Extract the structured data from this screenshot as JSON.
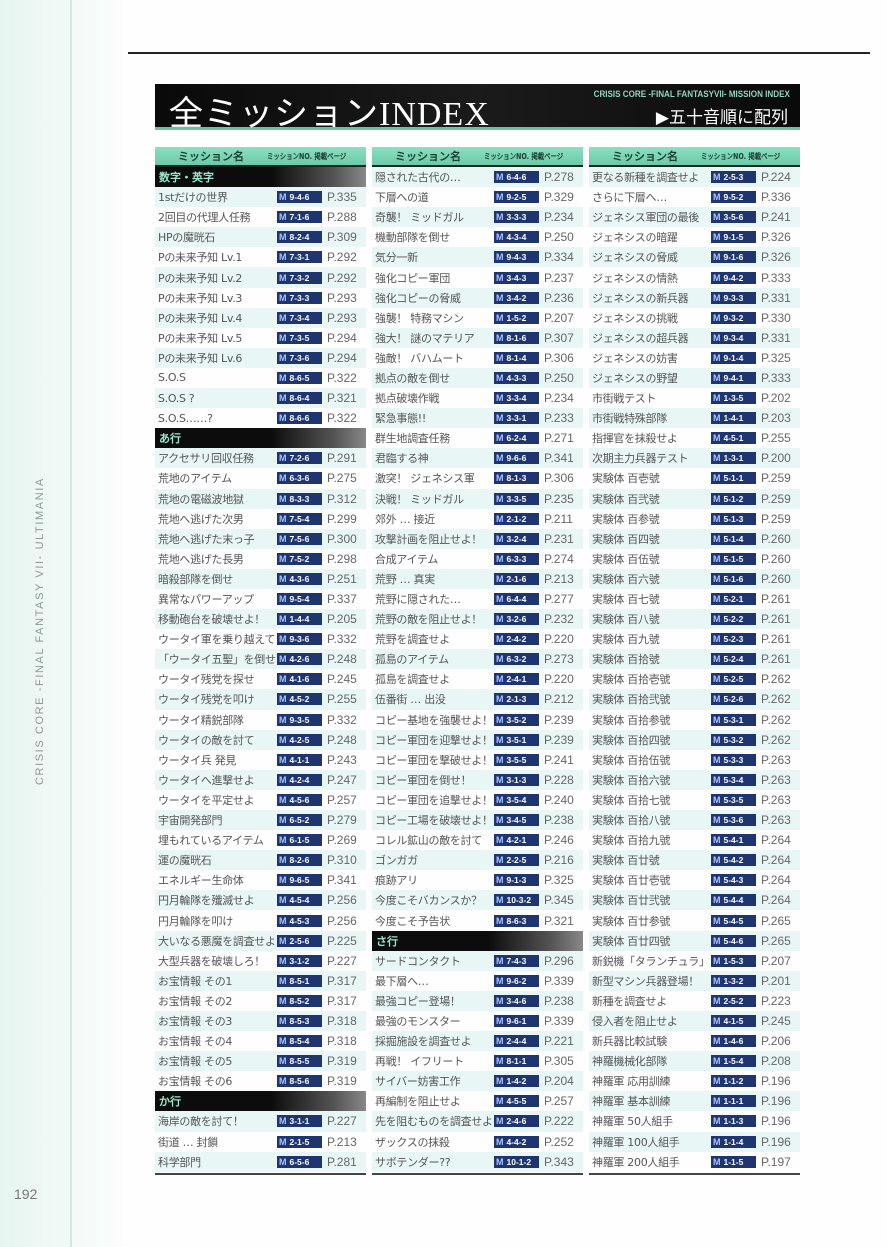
{
  "side_text": "CRISIS CORE -FINAL FANTASY VII- ULTIMANIA",
  "page_number": "192",
  "header": {
    "title": "全ミッションINDEX",
    "subtitle": "CRISIS CORE -FINAL FANTASYVII- MISSION INDEX",
    "sort_label": "▶五十音順に配列"
  },
  "column_headers": {
    "name": "ミッション名",
    "no_page": "ミッションNO. 掲載ページ"
  },
  "badge_letter": "M",
  "colors": {
    "accent": "#6fbfa5",
    "badge": "#1f3570",
    "band": "#0a0a0a"
  },
  "columns": [
    {
      "rows": [
        {
          "section": "数字・英字"
        },
        {
          "name": "1stだけの世界",
          "no": "9-4-6",
          "page": "P.335"
        },
        {
          "name": "2回目の代理人任務",
          "no": "7-1-6",
          "page": "P.288"
        },
        {
          "name": "HPの魔晄石",
          "no": "8-2-4",
          "page": "P.309"
        },
        {
          "name": "Pの未来予知 Lv.1",
          "no": "7-3-1",
          "page": "P.292"
        },
        {
          "name": "Pの未来予知 Lv.2",
          "no": "7-3-2",
          "page": "P.292"
        },
        {
          "name": "Pの未来予知 Lv.3",
          "no": "7-3-3",
          "page": "P.293"
        },
        {
          "name": "Pの未来予知 Lv.4",
          "no": "7-3-4",
          "page": "P.293"
        },
        {
          "name": "Pの未来予知 Lv.5",
          "no": "7-3-5",
          "page": "P.294"
        },
        {
          "name": "Pの未来予知 Lv.6",
          "no": "7-3-6",
          "page": "P.294"
        },
        {
          "name": "S.O.S",
          "no": "8-6-5",
          "page": "P.322"
        },
        {
          "name": "S.O.S ?",
          "no": "8-6-4",
          "page": "P.321"
        },
        {
          "name": "S.O.S……?",
          "no": "8-6-6",
          "page": "P.322"
        },
        {
          "section": "あ行"
        },
        {
          "name": "アクセサリ回収任務",
          "no": "7-2-6",
          "page": "P.291"
        },
        {
          "name": "荒地のアイテム",
          "no": "6-3-6",
          "page": "P.275"
        },
        {
          "name": "荒地の電磁波地獄",
          "no": "8-3-3",
          "page": "P.312"
        },
        {
          "name": "荒地へ逃げた次男",
          "no": "7-5-4",
          "page": "P.299"
        },
        {
          "name": "荒地へ逃げた末っ子",
          "no": "7-5-6",
          "page": "P.300"
        },
        {
          "name": "荒地へ逃げた長男",
          "no": "7-5-2",
          "page": "P.298"
        },
        {
          "name": "暗殺部隊を倒せ",
          "no": "4-3-6",
          "page": "P.251"
        },
        {
          "name": "異常なパワーアップ",
          "no": "9-5-4",
          "page": "P.337"
        },
        {
          "name": "移動砲台を破壊せよ！",
          "no": "1-4-4",
          "page": "P.205"
        },
        {
          "name": "ウータイ軍を乗り越えて",
          "no": "9-3-6",
          "page": "P.332"
        },
        {
          "name": "「ウータイ五聖」を倒せ",
          "no": "4-2-6",
          "page": "P.248"
        },
        {
          "name": "ウータイ残党を探せ",
          "no": "4-1-6",
          "page": "P.245"
        },
        {
          "name": "ウータイ残党を叩け",
          "no": "4-5-2",
          "page": "P.255"
        },
        {
          "name": "ウータイ精鋭部隊",
          "no": "9-3-5",
          "page": "P.332"
        },
        {
          "name": "ウータイの敵を討て",
          "no": "4-2-5",
          "page": "P.248"
        },
        {
          "name": "ウータイ兵 発見",
          "no": "4-1-1",
          "page": "P.243"
        },
        {
          "name": "ウータイへ進撃せよ",
          "no": "4-2-4",
          "page": "P.247"
        },
        {
          "name": "ウータイを平定せよ",
          "no": "4-5-6",
          "page": "P.257"
        },
        {
          "name": "宇宙開発部門",
          "no": "6-5-2",
          "page": "P.279"
        },
        {
          "name": "埋もれているアイテム",
          "no": "6-1-5",
          "page": "P.269"
        },
        {
          "name": "運の魔晄石",
          "no": "8-2-6",
          "page": "P.310"
        },
        {
          "name": "エネルギー生命体",
          "no": "9-6-5",
          "page": "P.341"
        },
        {
          "name": "円月輪隊を殲滅せよ",
          "no": "4-5-4",
          "page": "P.256"
        },
        {
          "name": "円月輪隊を叩け",
          "no": "4-5-3",
          "page": "P.256"
        },
        {
          "name": "大いなる悪魔を調査せよ",
          "no": "2-5-6",
          "page": "P.225"
        },
        {
          "name": "大型兵器を破壊しろ！",
          "no": "3-1-2",
          "page": "P.227"
        },
        {
          "name": "お宝情報 その1",
          "no": "8-5-1",
          "page": "P.317"
        },
        {
          "name": "お宝情報 その2",
          "no": "8-5-2",
          "page": "P.317"
        },
        {
          "name": "お宝情報 その3",
          "no": "8-5-3",
          "page": "P.318"
        },
        {
          "name": "お宝情報 その4",
          "no": "8-5-4",
          "page": "P.318"
        },
        {
          "name": "お宝情報 その5",
          "no": "8-5-5",
          "page": "P.319"
        },
        {
          "name": "お宝情報 その6",
          "no": "8-5-6",
          "page": "P.319"
        },
        {
          "section": "か行"
        },
        {
          "name": "海岸の敵を討て！",
          "no": "3-1-1",
          "page": "P.227"
        },
        {
          "name": "街道 … 封鎖",
          "no": "2-1-5",
          "page": "P.213"
        },
        {
          "name": "科学部門",
          "no": "6-5-6",
          "page": "P.281"
        }
      ]
    },
    {
      "rows": [
        {
          "name": "隠された古代の…",
          "no": "6-4-6",
          "page": "P.278"
        },
        {
          "name": "下層への道",
          "no": "9-2-5",
          "page": "P.329"
        },
        {
          "name": "奇襲！ ミッドガル",
          "no": "3-3-3",
          "page": "P.234"
        },
        {
          "name": "機動部隊を倒せ",
          "no": "4-3-4",
          "page": "P.250"
        },
        {
          "name": "気分一新",
          "no": "9-4-3",
          "page": "P.334"
        },
        {
          "name": "強化コピー軍団",
          "no": "3-4-3",
          "page": "P.237"
        },
        {
          "name": "強化コピーの脅威",
          "no": "3-4-2",
          "page": "P.236"
        },
        {
          "name": "強襲！ 特務マシン",
          "no": "1-5-2",
          "page": "P.207"
        },
        {
          "name": "強大！ 謎のマテリア",
          "no": "8-1-6",
          "page": "P.307"
        },
        {
          "name": "強敵！ バハムート",
          "no": "8-1-4",
          "page": "P.306"
        },
        {
          "name": "拠点の敵を倒せ",
          "no": "4-3-3",
          "page": "P.250"
        },
        {
          "name": "拠点破壊作戦",
          "no": "3-3-4",
          "page": "P.234"
        },
        {
          "name": "緊急事態!!",
          "no": "3-3-1",
          "page": "P.233"
        },
        {
          "name": "群生地調査任務",
          "no": "6-2-4",
          "page": "P.271"
        },
        {
          "name": "君臨する神",
          "no": "9-6-6",
          "page": "P.341"
        },
        {
          "name": "激突！ ジェネシス軍",
          "no": "8-1-3",
          "page": "P.306"
        },
        {
          "name": "決戦！ ミッドガル",
          "no": "3-3-5",
          "page": "P.235"
        },
        {
          "name": "郊外 … 接近",
          "no": "2-1-2",
          "page": "P.211"
        },
        {
          "name": "攻撃計画を阻止せよ！",
          "no": "3-2-4",
          "page": "P.231"
        },
        {
          "name": "合成アイテム",
          "no": "6-3-3",
          "page": "P.274"
        },
        {
          "name": "荒野 … 真実",
          "no": "2-1-6",
          "page": "P.213"
        },
        {
          "name": "荒野に隠された…",
          "no": "6-4-4",
          "page": "P.277"
        },
        {
          "name": "荒野の敵を阻止せよ！",
          "no": "3-2-6",
          "page": "P.232"
        },
        {
          "name": "荒野を調査せよ",
          "no": "2-4-2",
          "page": "P.220"
        },
        {
          "name": "孤島のアイテム",
          "no": "6-3-2",
          "page": "P.273"
        },
        {
          "name": "孤島を調査せよ",
          "no": "2-4-1",
          "page": "P.220"
        },
        {
          "name": "伍番街 … 出没",
          "no": "2-1-3",
          "page": "P.212"
        },
        {
          "name": "コピー基地を強襲せよ！",
          "no": "3-5-2",
          "page": "P.239"
        },
        {
          "name": "コピー軍団を迎撃せよ！",
          "no": "3-5-1",
          "page": "P.239"
        },
        {
          "name": "コピー軍団を撃破せよ！",
          "no": "3-5-5",
          "page": "P.241"
        },
        {
          "name": "コピー軍団を倒せ！",
          "no": "3-1-3",
          "page": "P.228"
        },
        {
          "name": "コピー軍団を追撃せよ！",
          "no": "3-5-4",
          "page": "P.240"
        },
        {
          "name": "コピー工場を破壊せよ！",
          "no": "3-4-5",
          "page": "P.238"
        },
        {
          "name": "コレル鉱山の敵を討て",
          "no": "4-2-1",
          "page": "P.246"
        },
        {
          "name": "ゴンガガ",
          "no": "2-2-5",
          "page": "P.216"
        },
        {
          "name": "痕跡アリ",
          "no": "9-1-3",
          "page": "P.325"
        },
        {
          "name": "今度こそバカンスか？",
          "no": "10-3-2",
          "page": "P.345"
        },
        {
          "name": "今度こそ予告状",
          "no": "8-6-3",
          "page": "P.321"
        },
        {
          "section": "さ行"
        },
        {
          "name": "サードコンタクト",
          "no": "7-4-3",
          "page": "P.296"
        },
        {
          "name": "最下層へ…",
          "no": "9-6-2",
          "page": "P.339"
        },
        {
          "name": "最強コピー登場！",
          "no": "3-4-6",
          "page": "P.238"
        },
        {
          "name": "最強のモンスター",
          "no": "9-6-1",
          "page": "P.339"
        },
        {
          "name": "採掘施設を調査せよ",
          "no": "2-4-4",
          "page": "P.221"
        },
        {
          "name": "再戦！ イフリート",
          "no": "8-1-1",
          "page": "P.305"
        },
        {
          "name": "サイバー妨害工作",
          "no": "1-4-2",
          "page": "P.204"
        },
        {
          "name": "再編制を阻止せよ",
          "no": "4-5-5",
          "page": "P.257"
        },
        {
          "name": "先を阻むものを調査せよ",
          "no": "2-4-6",
          "page": "P.222"
        },
        {
          "name": "ザックスの抹殺",
          "no": "4-4-2",
          "page": "P.252"
        },
        {
          "name": "サボテンダー??",
          "no": "10-1-2",
          "page": "P.343"
        }
      ]
    },
    {
      "rows": [
        {
          "name": "更なる新種を調査せよ",
          "no": "2-5-3",
          "page": "P.224"
        },
        {
          "name": "さらに下層へ…",
          "no": "9-5-2",
          "page": "P.336"
        },
        {
          "name": "ジェネシス軍団の最後",
          "no": "3-5-6",
          "page": "P.241"
        },
        {
          "name": "ジェネシスの暗躍",
          "no": "9-1-5",
          "page": "P.326"
        },
        {
          "name": "ジェネシスの脅威",
          "no": "9-1-6",
          "page": "P.326"
        },
        {
          "name": "ジェネシスの情熱",
          "no": "9-4-2",
          "page": "P.333"
        },
        {
          "name": "ジェネシスの新兵器",
          "no": "9-3-3",
          "page": "P.331"
        },
        {
          "name": "ジェネシスの挑戦",
          "no": "9-3-2",
          "page": "P.330"
        },
        {
          "name": "ジェネシスの超兵器",
          "no": "9-3-4",
          "page": "P.331"
        },
        {
          "name": "ジェネシスの妨害",
          "no": "9-1-4",
          "page": "P.325"
        },
        {
          "name": "ジェネシスの野望",
          "no": "9-4-1",
          "page": "P.333"
        },
        {
          "name": "市街戦テスト",
          "no": "1-3-5",
          "page": "P.202"
        },
        {
          "name": "市街戦特殊部隊",
          "no": "1-4-1",
          "page": "P.203"
        },
        {
          "name": "指揮官を抹殺せよ",
          "no": "4-5-1",
          "page": "P.255"
        },
        {
          "name": "次期主力兵器テスト",
          "no": "1-3-1",
          "page": "P.200"
        },
        {
          "name": "実験体 百壱號",
          "no": "5-1-1",
          "page": "P.259"
        },
        {
          "name": "実験体 百弐號",
          "no": "5-1-2",
          "page": "P.259"
        },
        {
          "name": "実験体 百参號",
          "no": "5-1-3",
          "page": "P.259"
        },
        {
          "name": "実験体 百四號",
          "no": "5-1-4",
          "page": "P.260"
        },
        {
          "name": "実験体 百伍號",
          "no": "5-1-5",
          "page": "P.260"
        },
        {
          "name": "実験体 百六號",
          "no": "5-1-6",
          "page": "P.260"
        },
        {
          "name": "実験体 百七號",
          "no": "5-2-1",
          "page": "P.261"
        },
        {
          "name": "実験体 百八號",
          "no": "5-2-2",
          "page": "P.261"
        },
        {
          "name": "実験体 百九號",
          "no": "5-2-3",
          "page": "P.261"
        },
        {
          "name": "実験体 百拾號",
          "no": "5-2-4",
          "page": "P.261"
        },
        {
          "name": "実験体 百拾壱號",
          "no": "5-2-5",
          "page": "P.262"
        },
        {
          "name": "実験体 百拾弐號",
          "no": "5-2-6",
          "page": "P.262"
        },
        {
          "name": "実験体 百拾参號",
          "no": "5-3-1",
          "page": "P.262"
        },
        {
          "name": "実験体 百拾四號",
          "no": "5-3-2",
          "page": "P.262"
        },
        {
          "name": "実験体 百拾伍號",
          "no": "5-3-3",
          "page": "P.263"
        },
        {
          "name": "実験体 百拾六號",
          "no": "5-3-4",
          "page": "P.263"
        },
        {
          "name": "実験体 百拾七號",
          "no": "5-3-5",
          "page": "P.263"
        },
        {
          "name": "実験体 百拾八號",
          "no": "5-3-6",
          "page": "P.263"
        },
        {
          "name": "実験体 百拾九號",
          "no": "5-4-1",
          "page": "P.264"
        },
        {
          "name": "実験体 百廿號",
          "no": "5-4-2",
          "page": "P.264"
        },
        {
          "name": "実験体 百廿壱號",
          "no": "5-4-3",
          "page": "P.264"
        },
        {
          "name": "実験体 百廿弐號",
          "no": "5-4-4",
          "page": "P.264"
        },
        {
          "name": "実験体 百廿参號",
          "no": "5-4-5",
          "page": "P.265"
        },
        {
          "name": "実験体 百廿四號",
          "no": "5-4-6",
          "page": "P.265"
        },
        {
          "name": "新鋭機「タランチュラ」",
          "no": "1-5-3",
          "page": "P.207"
        },
        {
          "name": "新型マシン兵器登場！",
          "no": "1-3-2",
          "page": "P.201"
        },
        {
          "name": "新種を調査せよ",
          "no": "2-5-2",
          "page": "P.223"
        },
        {
          "name": "侵入者を阻止せよ",
          "no": "4-1-5",
          "page": "P.245"
        },
        {
          "name": "新兵器比較試験",
          "no": "1-4-6",
          "page": "P.206"
        },
        {
          "name": "神羅機械化部隊",
          "no": "1-5-4",
          "page": "P.208"
        },
        {
          "name": "神羅軍 応用訓練",
          "no": "1-1-2",
          "page": "P.196"
        },
        {
          "name": "神羅軍 基本訓練",
          "no": "1-1-1",
          "page": "P.196"
        },
        {
          "name": "神羅軍 50人組手",
          "no": "1-1-3",
          "page": "P.196"
        },
        {
          "name": "神羅軍 100人組手",
          "no": "1-1-4",
          "page": "P.196"
        },
        {
          "name": "神羅軍 200人組手",
          "no": "1-1-5",
          "page": "P.197"
        }
      ]
    }
  ]
}
